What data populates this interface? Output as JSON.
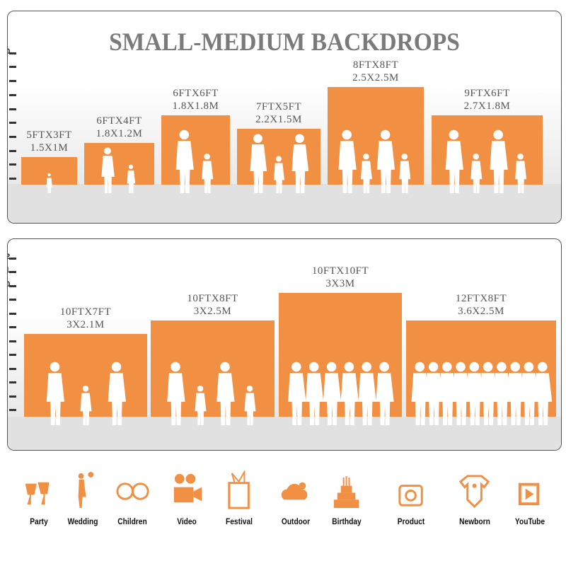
{
  "title": "SMALL-MEDIUM BACKDROPS",
  "accent_color": "#f18f43",
  "panels": [
    {
      "axis_ticks": [
        "1",
        "2",
        "3",
        "4",
        "5",
        "6",
        "7",
        "8",
        "9",
        "10"
      ],
      "backdrops": [
        {
          "ft": "5FTX3FT",
          "m": "1.5X1M",
          "height_ft": 3,
          "figures": 1
        },
        {
          "ft": "6FTX4FT",
          "m": "1.8X1.2M",
          "height_ft": 4,
          "figures": 2
        },
        {
          "ft": "6FTX6FT",
          "m": "1.8X1.8M",
          "height_ft": 6,
          "figures": 2
        },
        {
          "ft": "7FTX5FT",
          "m": "2.2X1.5M",
          "height_ft": 5,
          "figures": 3
        },
        {
          "ft": "8FTX8FT",
          "m": "2.5X2.5M",
          "height_ft": 8,
          "figures": 4
        },
        {
          "ft": "9FTX6FT",
          "m": "2.7X1.8M",
          "height_ft": 6,
          "figures": 4
        }
      ]
    },
    {
      "axis_ticks": [
        "1",
        "2",
        "3",
        "4",
        "5",
        "6",
        "7",
        "8",
        "9",
        "10",
        "11",
        "12"
      ],
      "backdrops": [
        {
          "ft": "10FTX7FT",
          "m": "3X2.1M",
          "height_ft": 7,
          "figures": 3
        },
        {
          "ft": "10FTX8FT",
          "m": "3X2.5M",
          "height_ft": 8,
          "figures": 4
        },
        {
          "ft": "10FTX10FT",
          "m": "3X3M",
          "height_ft": 10,
          "figures": 6
        },
        {
          "ft": "12FTX8FT",
          "m": "3.6X2.5M",
          "height_ft": 8,
          "figures": 10
        }
      ]
    }
  ],
  "uses": [
    {
      "label": "Party",
      "icon": "cheers-glasses-icon"
    },
    {
      "label": "Wedding",
      "icon": "wedding-couple-icon"
    },
    {
      "label": "Children",
      "icon": "children-faces-icon"
    },
    {
      "label": "Video",
      "icon": "video-camera-icon"
    },
    {
      "label": "Festival",
      "icon": "gift-box-icon"
    },
    {
      "label": "Outdoor",
      "icon": "cloud-icon"
    },
    {
      "label": "Birthday",
      "icon": "birthday-cake-icon"
    },
    {
      "label": "Product",
      "icon": "camera-icon"
    },
    {
      "label": "Newborn",
      "icon": "baby-onesie-icon"
    },
    {
      "label": "YouTube",
      "icon": "play-button-icon"
    }
  ]
}
